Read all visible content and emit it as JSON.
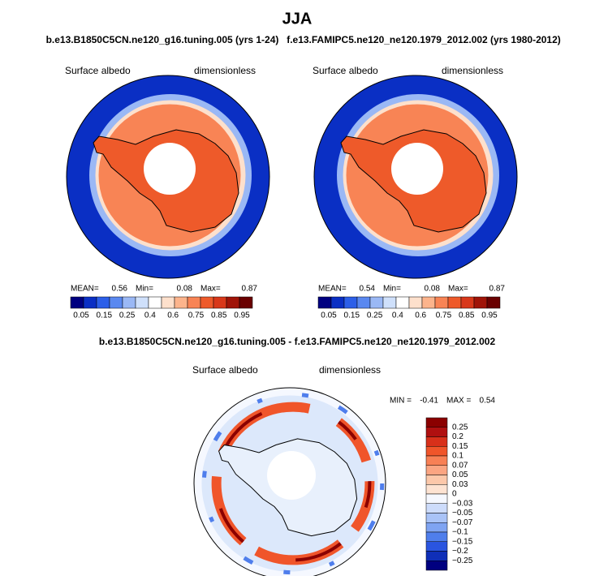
{
  "title": "JJA",
  "panels": [
    {
      "case": "b.e13.B1850C5CN.ne120_g16.tuning.005 (yrs 1-24)",
      "variable": "Surface albedo",
      "units": "dimensionless",
      "stats": [
        {
          "label": "MEAN=",
          "value": "0.56"
        },
        {
          "label": "Min=",
          "value": "0.08"
        },
        {
          "label": "Max=",
          "value": "0.87"
        }
      ]
    },
    {
      "case": "f.e13.FAMIPC5.ne120_ne120.1979_2012.002 (yrs 1980-2012)",
      "variable": "Surface albedo",
      "units": "dimensionless",
      "stats": [
        {
          "label": "MEAN=",
          "value": "0.54"
        },
        {
          "label": "Min=",
          "value": "0.08"
        },
        {
          "label": "Max=",
          "value": "0.87"
        }
      ]
    }
  ],
  "colorbar": {
    "colors": [
      "#000080",
      "#0a2fc4",
      "#2c5fe8",
      "#5a88f0",
      "#9ab8f5",
      "#cfe0fb",
      "#ffffff",
      "#fde0cc",
      "#fcb48c",
      "#f88455",
      "#ee5a2a",
      "#d8381a",
      "#a01408",
      "#6a0000"
    ],
    "labels": [
      "0.05",
      "0.15",
      "0.25",
      "0.4",
      "0.6",
      "0.75",
      "0.85",
      "0.95"
    ]
  },
  "difference": {
    "title": "b.e13.B1850C5CN.ne120_g16.tuning.005 - f.e13.FAMIPC5.ne120_ne120.1979_2012.002",
    "variable": "Surface albedo",
    "units": "dimensionless",
    "stats": [
      {
        "label": "MIN =",
        "value": "-0.41"
      },
      {
        "label": "MAX =",
        "value": "0.54"
      }
    ],
    "colorbar": {
      "colors": [
        "#8b0000",
        "#b01010",
        "#d8301a",
        "#f0552a",
        "#f88055",
        "#fba582",
        "#fcc8aa",
        "#fde3d2",
        "#f5f8ff",
        "#cddcfb",
        "#a9c3f7",
        "#7fa4f2",
        "#4f7eec",
        "#2a55e0",
        "#0f2fb8",
        "#000080"
      ],
      "labels": [
        "0.25",
        "0.2",
        "0.15",
        "0.1",
        "0.07",
        "0.05",
        "0.03",
        "0",
        "−0.03",
        "−0.05",
        "−0.07",
        "−0.1",
        "−0.15",
        "−0.2",
        "−0.25"
      ]
    }
  }
}
